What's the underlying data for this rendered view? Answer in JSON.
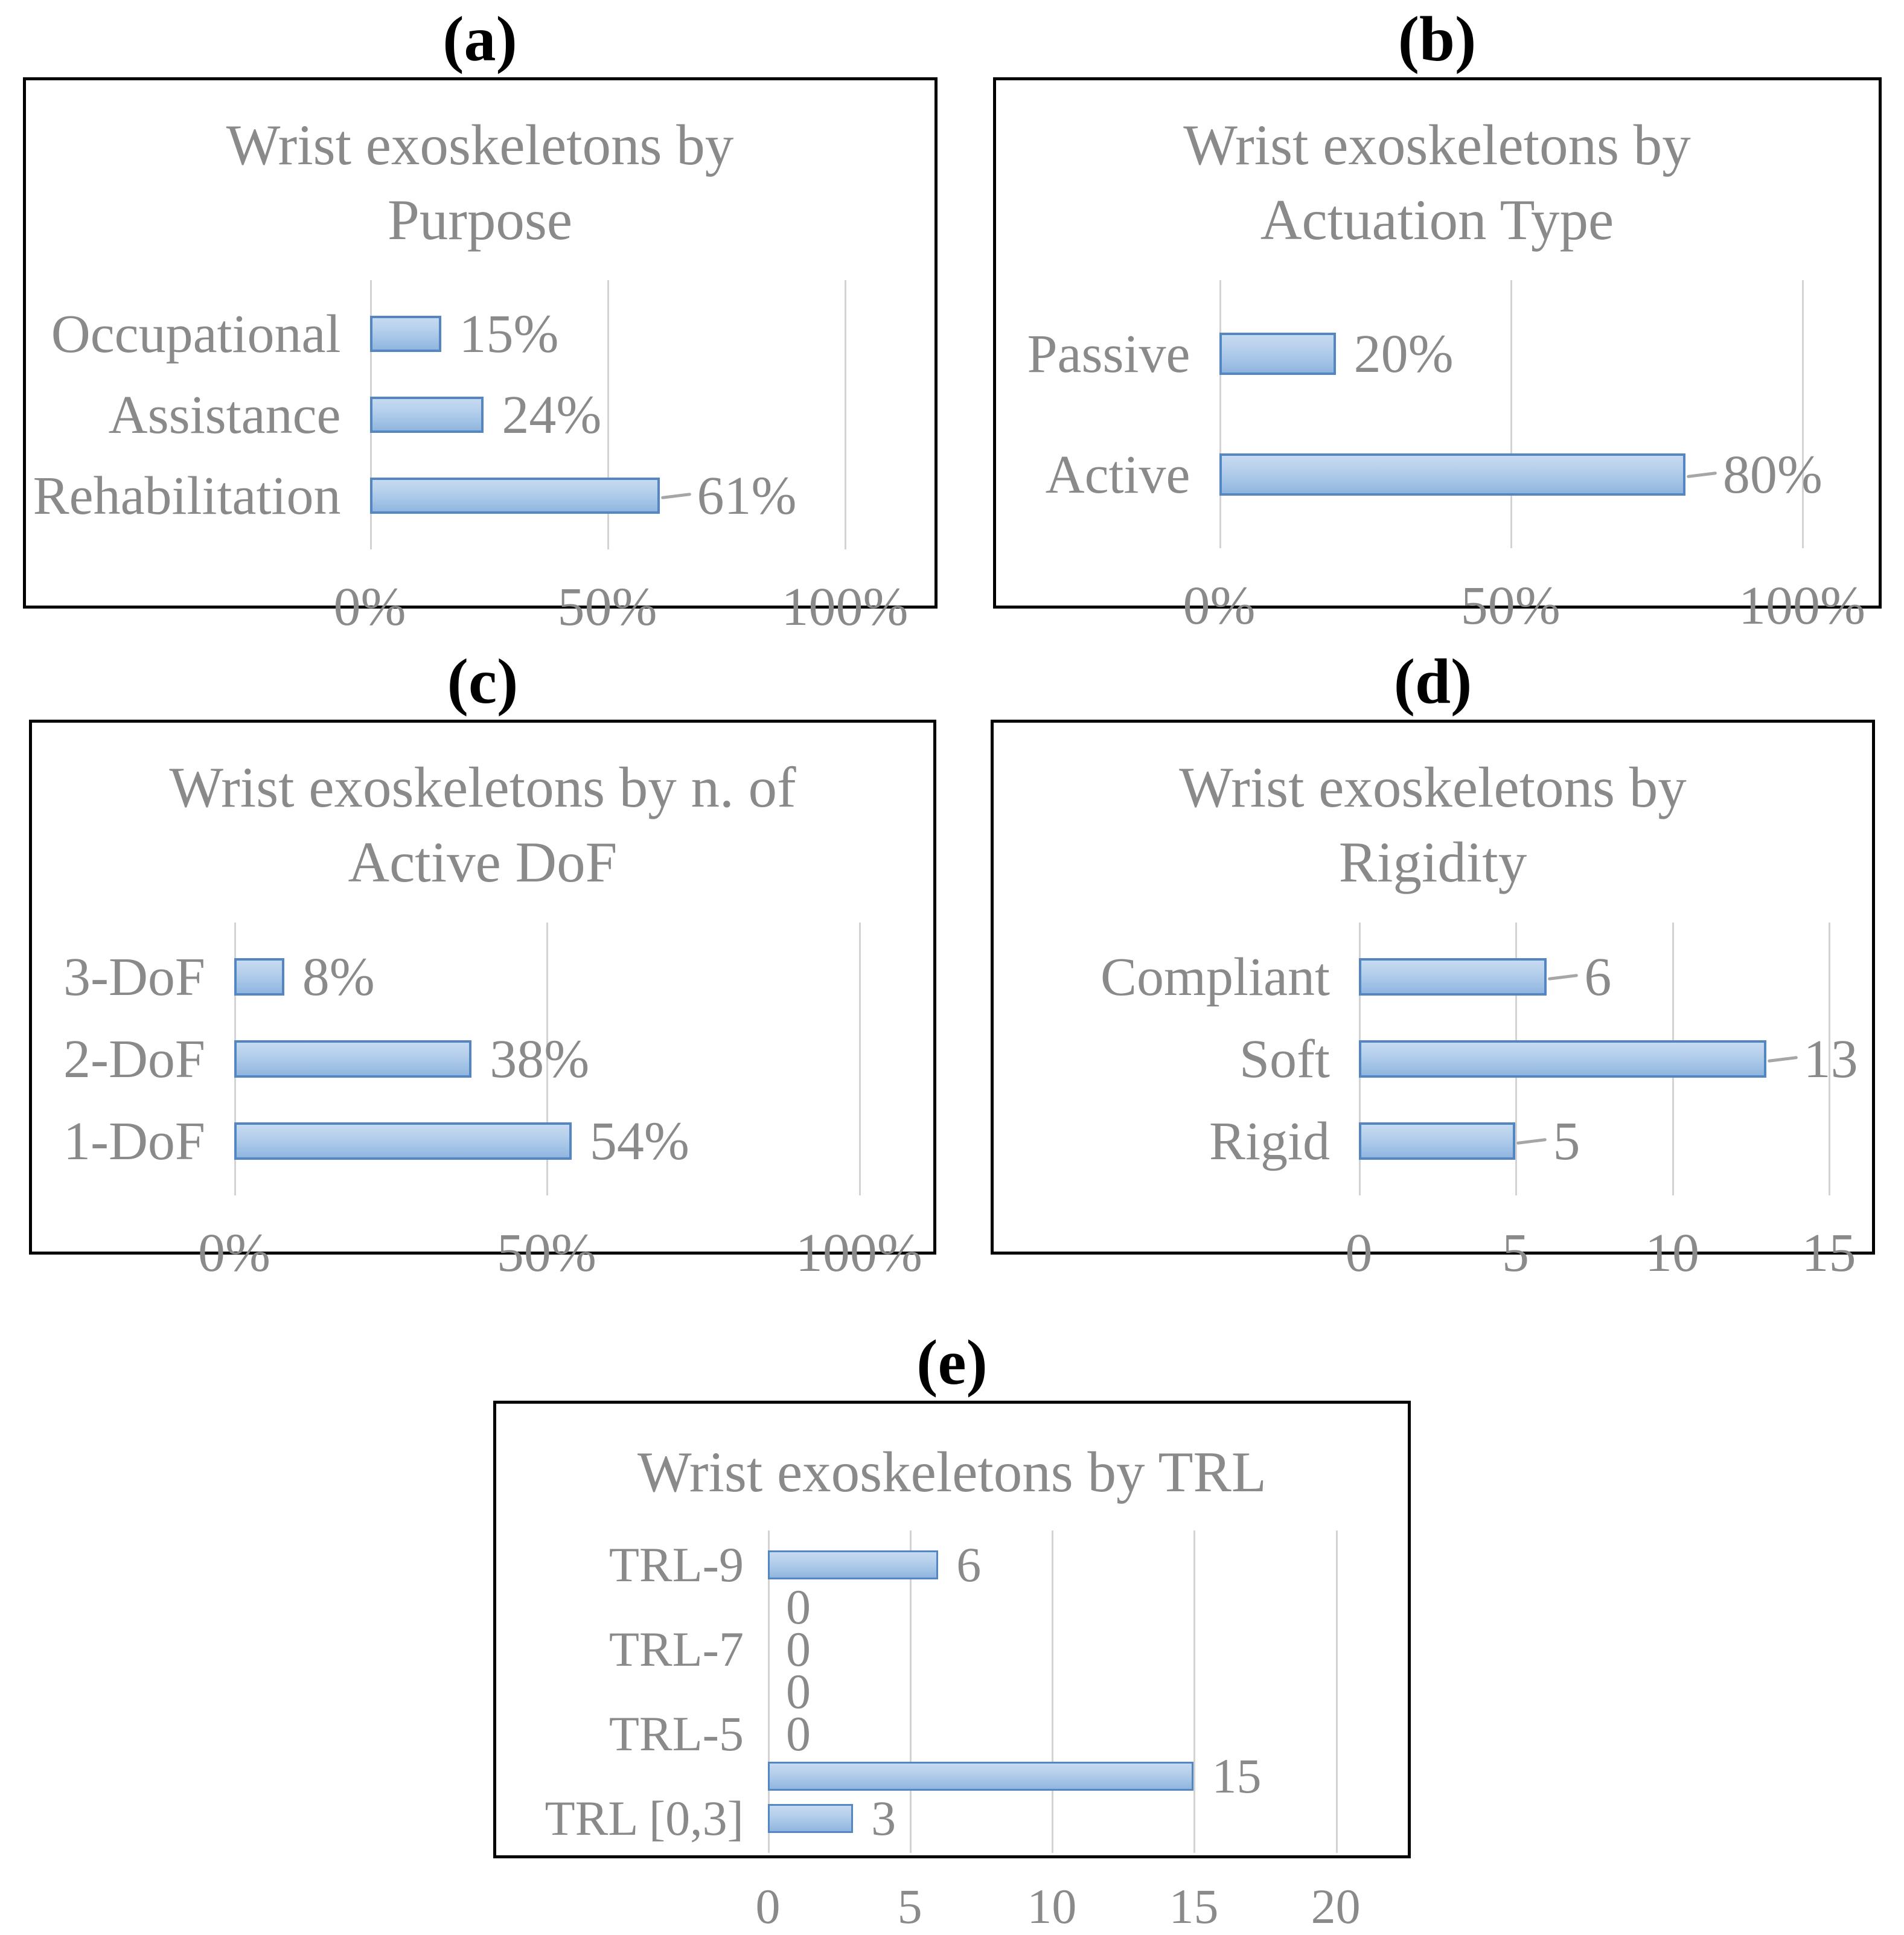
{
  "figure": {
    "panel_labels": [
      "(a)",
      "(b)",
      "(c)",
      "(d)",
      "(e)"
    ]
  },
  "colors": {
    "bar_fill_light": "#c6daf1",
    "bar_fill_dark": "#90b5de",
    "bar_border": "#5486c2",
    "gridline": "#d3d3d3",
    "text_gray": "#8a8a8a",
    "panel_border": "#000000",
    "leader_line": "#a6a6a6"
  },
  "chart_data": [
    {
      "type": "bar",
      "orientation": "horizontal",
      "panel_label": "(a)",
      "title": "Wrist exoskeletons by Purpose",
      "categories": [
        "Occupational",
        "Assistance",
        "Rehabilitation"
      ],
      "values": [
        15,
        24,
        61
      ],
      "value_labels": [
        "15%",
        "24%",
        "61%"
      ],
      "leaders": [
        false,
        false,
        true
      ],
      "ticks": [
        {
          "value": 0,
          "label": "0%"
        },
        {
          "value": 50,
          "label": "50%"
        },
        {
          "value": 100,
          "label": "100%"
        }
      ],
      "xlabel": "",
      "ylabel": "",
      "xlim": [
        0,
        115
      ],
      "grid": true,
      "legend": false
    },
    {
      "type": "bar",
      "orientation": "horizontal",
      "panel_label": "(b)",
      "title": "Wrist exoskeletons by Actuation Type",
      "categories": [
        "Passive",
        "Active"
      ],
      "values": [
        20,
        80
      ],
      "value_labels": [
        "20%",
        "80%"
      ],
      "leaders": [
        false,
        true
      ],
      "ticks": [
        {
          "value": 0,
          "label": "0%"
        },
        {
          "value": 50,
          "label": "50%"
        },
        {
          "value": 100,
          "label": "100%"
        }
      ],
      "xlabel": "",
      "ylabel": "",
      "xlim": [
        0,
        110
      ],
      "grid": true,
      "legend": false
    },
    {
      "type": "bar",
      "orientation": "horizontal",
      "panel_label": "(c)",
      "title": "Wrist exoskeletons by n. of Active DoF",
      "categories": [
        "3-DoF",
        "2-DoF",
        "1-DoF"
      ],
      "values": [
        8,
        38,
        54
      ],
      "value_labels": [
        "8%",
        "38%",
        "54%"
      ],
      "leaders": [
        false,
        false,
        false
      ],
      "ticks": [
        {
          "value": 0,
          "label": "0%"
        },
        {
          "value": 50,
          "label": "50%"
        },
        {
          "value": 100,
          "label": "100%"
        }
      ],
      "xlabel": "",
      "ylabel": "",
      "xlim": [
        0,
        109
      ],
      "grid": true,
      "legend": false
    },
    {
      "type": "bar",
      "orientation": "horizontal",
      "panel_label": "(d)",
      "title": "Wrist exoskeletons by Rigidity",
      "categories": [
        "Compliant",
        "Soft",
        "Rigid"
      ],
      "values": [
        6,
        13,
        5
      ],
      "value_labels": [
        "6",
        "13",
        "5"
      ],
      "leaders": [
        true,
        true,
        true
      ],
      "ticks": [
        {
          "value": 0,
          "label": "0"
        },
        {
          "value": 5,
          "label": "5"
        },
        {
          "value": 10,
          "label": "10"
        },
        {
          "value": 15,
          "label": "15"
        }
      ],
      "xlabel": "",
      "ylabel": "",
      "xlim": [
        0,
        15.8
      ],
      "grid": true,
      "legend": false
    },
    {
      "type": "bar",
      "orientation": "horizontal",
      "panel_label": "(e)",
      "title": "Wrist exoskeletons by TRL",
      "categories": [
        "TRL-9",
        "",
        "TRL-7",
        "",
        "TRL-5",
        "",
        "TRL [0,3]"
      ],
      "values": [
        6,
        0,
        0,
        0,
        0,
        15,
        3
      ],
      "value_labels": [
        "6",
        "0",
        "0",
        "0",
        "0",
        "15",
        "3"
      ],
      "leaders": [
        false,
        false,
        false,
        false,
        false,
        false,
        false
      ],
      "ticks": [
        {
          "value": 0,
          "label": "0"
        },
        {
          "value": 5,
          "label": "5"
        },
        {
          "value": 10,
          "label": "10"
        },
        {
          "value": 15,
          "label": "15"
        },
        {
          "value": 20,
          "label": "20"
        }
      ],
      "xlabel": "",
      "ylabel": "",
      "xlim": [
        0,
        21.9
      ],
      "grid": true,
      "legend": false
    }
  ]
}
